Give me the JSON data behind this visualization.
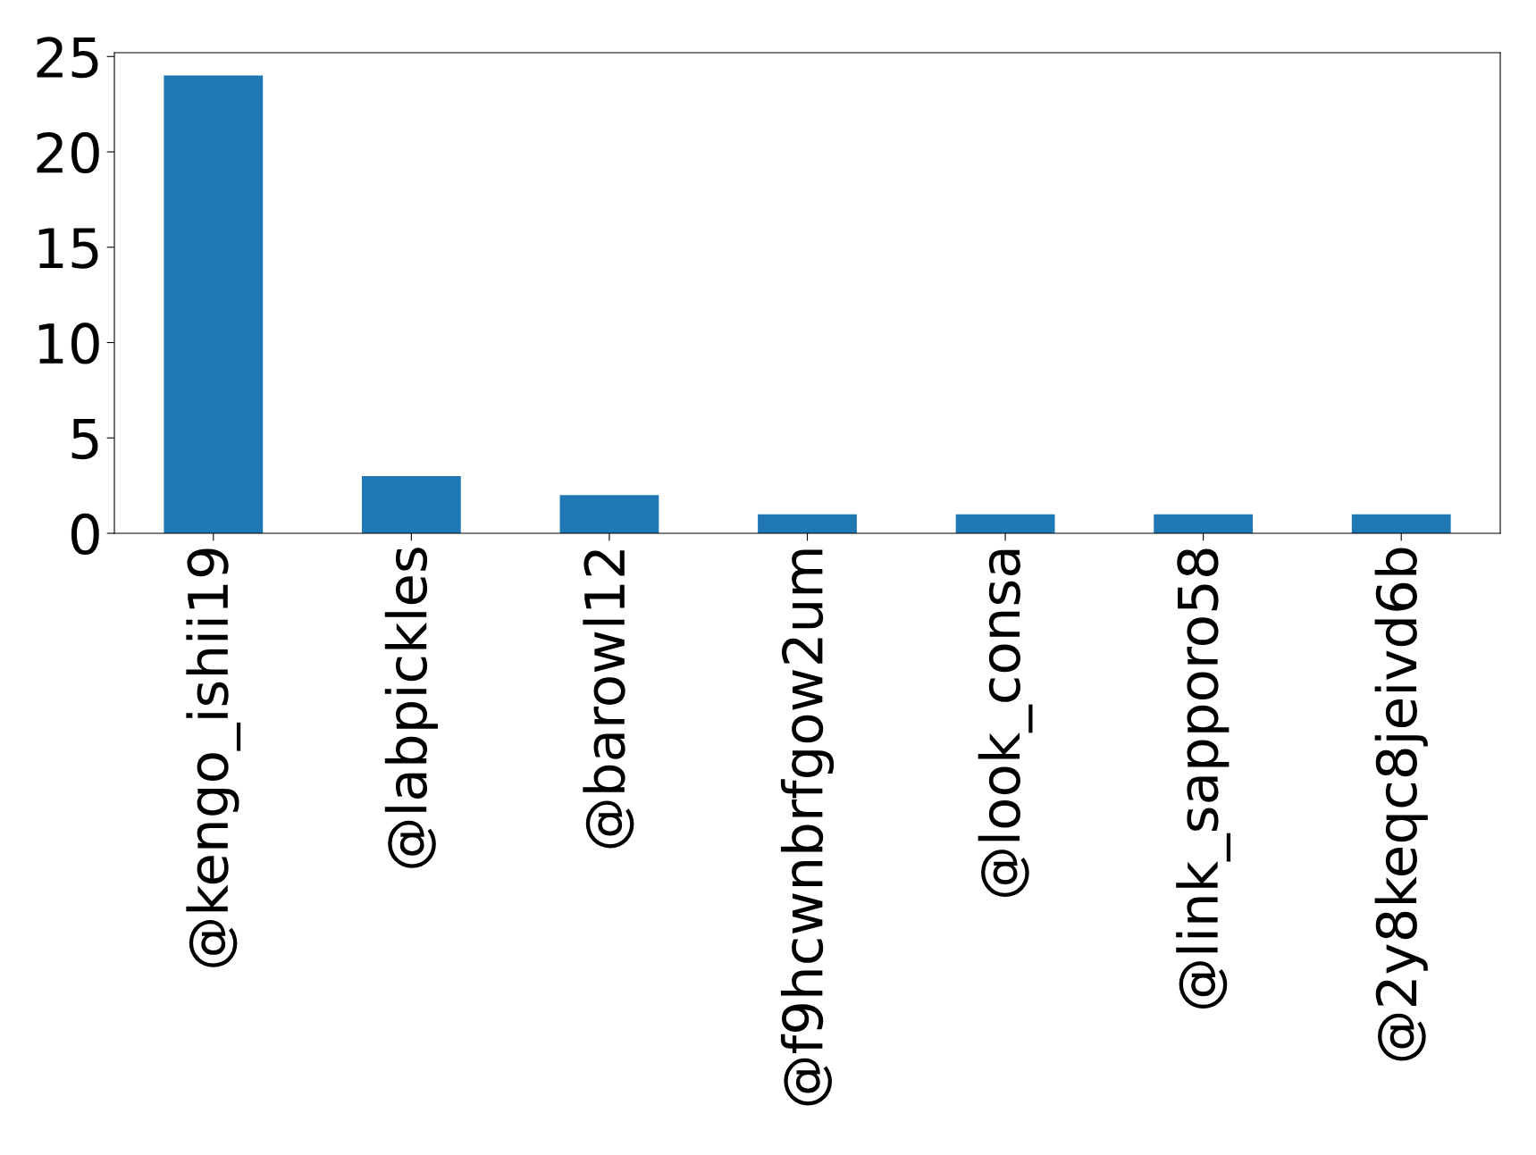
{
  "chart_data": {
    "type": "bar",
    "categories": [
      "@kengo_ishii19",
      "@labpickles",
      "@barowl12",
      "@f9hcwnbrfgow2um",
      "@look_consa",
      "@link_sapporo58",
      "@2y8keqc8jeivd6b"
    ],
    "values": [
      24,
      3,
      2,
      1,
      1,
      1,
      1
    ],
    "color": "#1f77b4",
    "ylim": [
      0,
      25.2
    ],
    "yticks": [
      0,
      5,
      10,
      15,
      20,
      25
    ],
    "grid": false
  }
}
